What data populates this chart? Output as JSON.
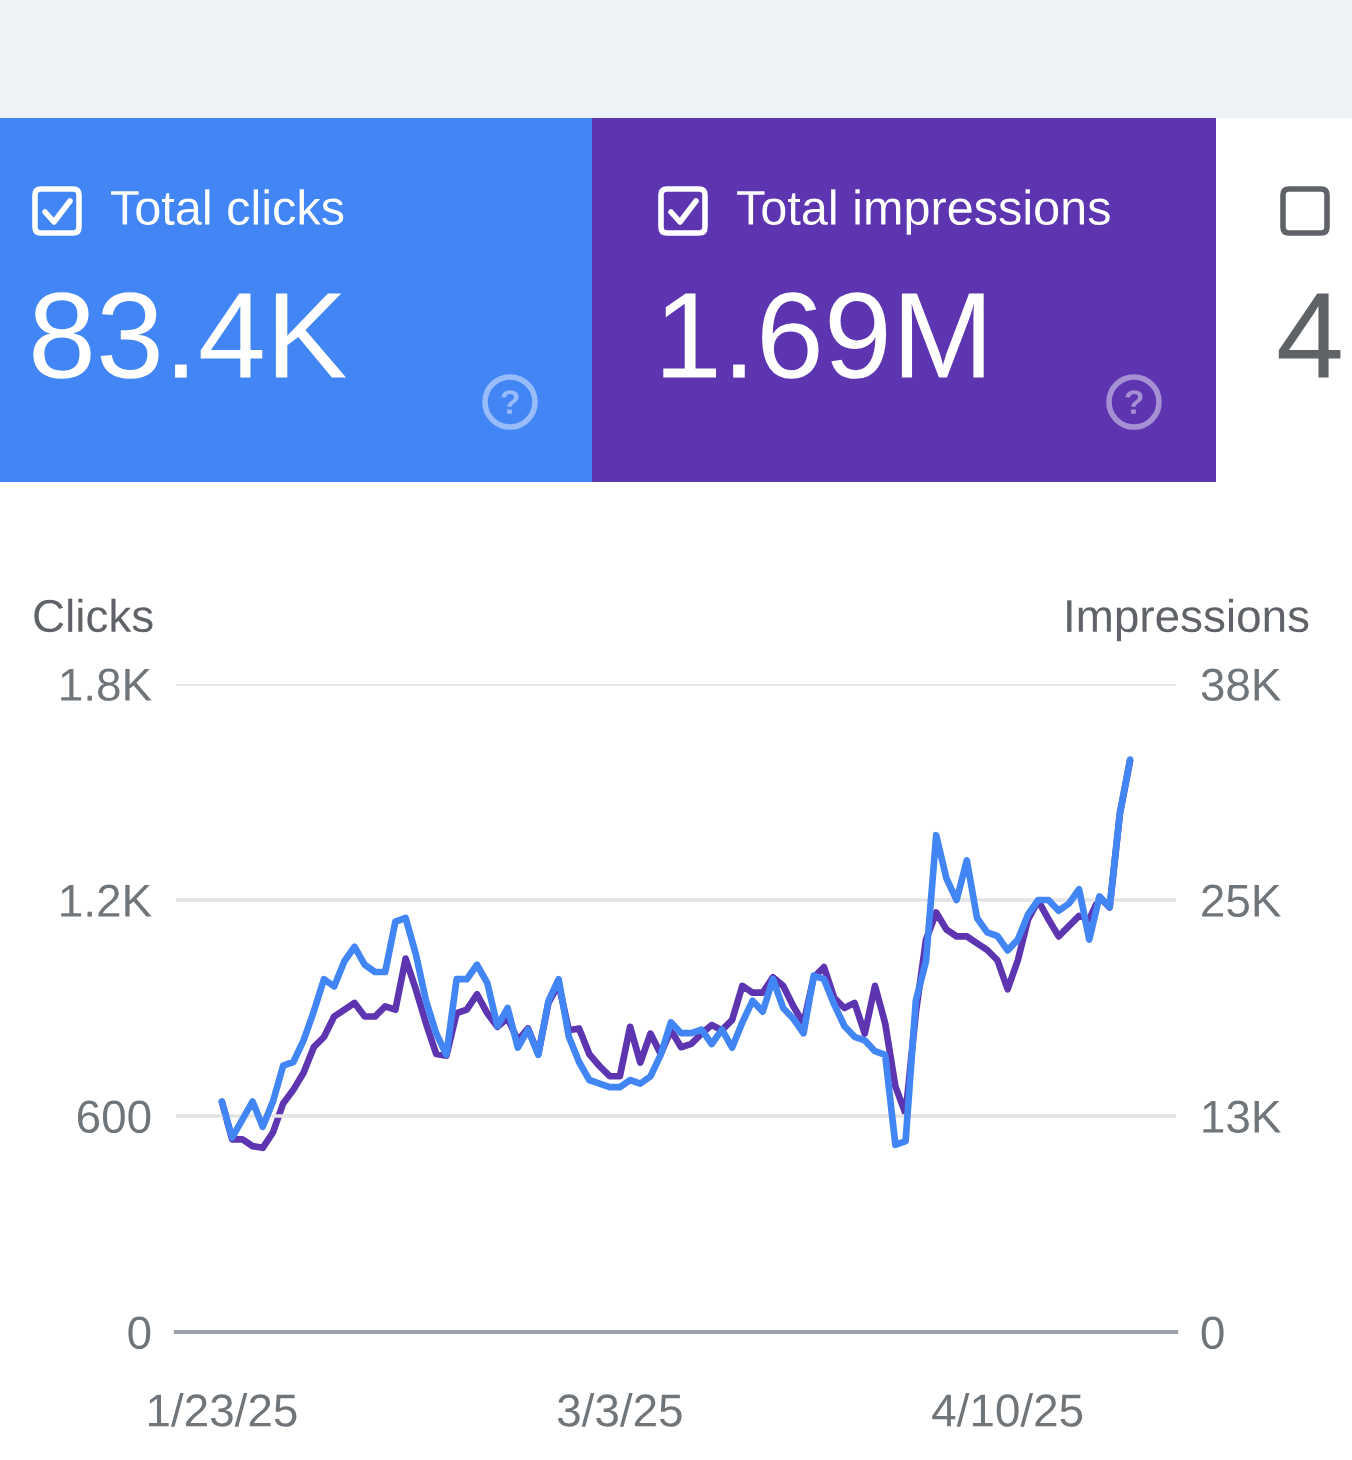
{
  "chart_data": [
    {
      "type": "other",
      "title": "Total clicks",
      "annotations": [
        "83.4K"
      ]
    },
    {
      "type": "other",
      "title": "Total impressions",
      "annotations": [
        "1.69M"
      ]
    },
    {
      "type": "other",
      "annotations": [
        "4"
      ]
    },
    {
      "type": "line",
      "ylabel": "Clicks",
      "y2label": "Impressions",
      "x": [
        "2025-01-23",
        "2025-01-24",
        "2025-01-25",
        "2025-01-26",
        "2025-01-27",
        "2025-01-28",
        "2025-01-29",
        "2025-01-30",
        "2025-01-31",
        "2025-02-01",
        "2025-02-02",
        "2025-02-03",
        "2025-02-04",
        "2025-02-05",
        "2025-02-06",
        "2025-02-07",
        "2025-02-08",
        "2025-02-09",
        "2025-02-10",
        "2025-02-11",
        "2025-02-12",
        "2025-02-13",
        "2025-02-14",
        "2025-02-15",
        "2025-02-16",
        "2025-02-17",
        "2025-02-18",
        "2025-02-19",
        "2025-02-20",
        "2025-02-21",
        "2025-02-22",
        "2025-02-23",
        "2025-02-24",
        "2025-02-25",
        "2025-02-26",
        "2025-02-27",
        "2025-02-28",
        "2025-03-01",
        "2025-03-02",
        "2025-03-03",
        "2025-03-04",
        "2025-03-05",
        "2025-03-06",
        "2025-03-07",
        "2025-03-08",
        "2025-03-09",
        "2025-03-10",
        "2025-03-11",
        "2025-03-12",
        "2025-03-13",
        "2025-03-14",
        "2025-03-15",
        "2025-03-16",
        "2025-03-17",
        "2025-03-18",
        "2025-03-19",
        "2025-03-20",
        "2025-03-21",
        "2025-03-22",
        "2025-03-23",
        "2025-03-24",
        "2025-03-25",
        "2025-03-26",
        "2025-03-27",
        "2025-03-28",
        "2025-03-29",
        "2025-03-30",
        "2025-03-31",
        "2025-04-01",
        "2025-04-02",
        "2025-04-03",
        "2025-04-04",
        "2025-04-05",
        "2025-04-06",
        "2025-04-07",
        "2025-04-08",
        "2025-04-09",
        "2025-04-10",
        "2025-04-11",
        "2025-04-12",
        "2025-04-13",
        "2025-04-14",
        "2025-04-15",
        "2025-04-16",
        "2025-04-17",
        "2025-04-18",
        "2025-04-19",
        "2025-04-20",
        "2025-04-21",
        "2025-04-22"
      ],
      "series": [
        {
          "color": "#4285f4",
          "values": [
            640,
            540,
            590,
            640,
            570,
            640,
            740,
            750,
            810,
            890,
            980,
            960,
            1030,
            1070,
            1020,
            1000,
            1000,
            1140,
            1150,
            1050,
            920,
            830,
            770,
            980,
            980,
            1020,
            970,
            850,
            900,
            790,
            840,
            770,
            920,
            980,
            820,
            750,
            700,
            690,
            680,
            680,
            700,
            690,
            710,
            770,
            860,
            830,
            830,
            840,
            800,
            840,
            790,
            860,
            920,
            890,
            980,
            900,
            870,
            830,
            990,
            980,
            910,
            850,
            820,
            810,
            780,
            770,
            520,
            530,
            920,
            1030,
            1380,
            1260,
            1200,
            1310,
            1150,
            1110,
            1100,
            1060,
            1090,
            1160,
            1200,
            1200,
            1170,
            1190,
            1230,
            1090,
            1210,
            1180,
            1440,
            1590
          ]
        },
        {
          "color": "#5e35b1",
          "axis": "y2",
          "values": [
            13500,
            11300,
            11300,
            10900,
            10800,
            11700,
            13400,
            14200,
            15200,
            16700,
            17300,
            18500,
            18900,
            19300,
            18500,
            18500,
            19100,
            18900,
            21900,
            20100,
            18100,
            16300,
            16200,
            18700,
            18900,
            19800,
            18700,
            17900,
            18400,
            17100,
            17800,
            16300,
            19300,
            20400,
            17700,
            17800,
            16300,
            15600,
            15000,
            15000,
            17900,
            15800,
            17500,
            16300,
            17700,
            16700,
            16900,
            17500,
            18000,
            17700,
            18300,
            20300,
            19900,
            19900,
            20800,
            20300,
            19100,
            18100,
            20800,
            21400,
            19600,
            19000,
            19300,
            17500,
            20300,
            18100,
            14400,
            12800,
            18700,
            23000,
            24600,
            23600,
            23200,
            23200,
            22800,
            22400,
            21800,
            20100,
            21800,
            24200,
            25300,
            24200,
            23200,
            23800,
            24400,
            24200,
            25500,
            24900,
            30400,
            33500
          ]
        }
      ],
      "xlim": [
        "2025-01-18T12:00",
        "2025-04-26T12:00"
      ],
      "xticks": [
        {
          "value": "2025-01-23",
          "label": "1/23/25"
        },
        {
          "value": "2025-03-03",
          "label": "3/3/25"
        },
        {
          "value": "2025-04-10",
          "label": "4/10/25"
        }
      ],
      "ylim": [
        0,
        1800
      ],
      "yticks": [
        0,
        600,
        {
          "value": 1200,
          "label": "1.2K"
        },
        {
          "value": 1800,
          "label": "1.8K"
        }
      ],
      "y2lim": [
        0,
        38000
      ],
      "y2ticks": [
        0,
        {
          "value": 12667,
          "label": "13K"
        },
        {
          "value": 25333,
          "label": "25K"
        },
        {
          "value": 38000,
          "label": "38K"
        }
      ],
      "grid": "y"
    }
  ]
}
